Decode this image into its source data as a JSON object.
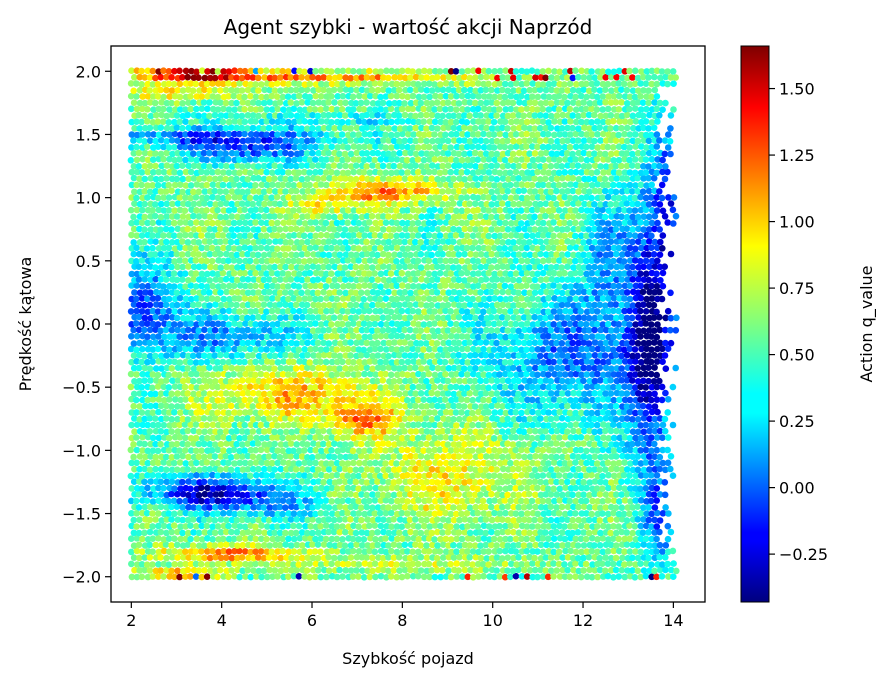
{
  "chart_data": {
    "type": "scatter",
    "title": "Agent szybki - wartość akcji Naprzód",
    "xlabel": "Szybkość pojazd",
    "ylabel": "Prędkość kątowa",
    "xlim": [
      1.55,
      14.7
    ],
    "ylim": [
      -2.2,
      2.2
    ],
    "xticks": [
      2,
      4,
      6,
      8,
      10,
      12,
      14
    ],
    "xtick_labels": [
      "2",
      "4",
      "6",
      "8",
      "10",
      "12",
      "14"
    ],
    "yticks": [
      -2.0,
      -1.5,
      -1.0,
      -0.5,
      0.0,
      0.5,
      1.0,
      1.5,
      2.0
    ],
    "ytick_labels": [
      "−2.0",
      "−1.5",
      "−1.0",
      "−0.5",
      "0.0",
      "0.5",
      "1.0",
      "1.5",
      "2.0"
    ],
    "grid": false,
    "colorbar": {
      "label": "Action q_value",
      "colormap": "jet",
      "vmin": -0.43,
      "vmax": 1.66,
      "ticks": [
        -0.25,
        0.0,
        0.25,
        0.5,
        0.75,
        1.0,
        1.25,
        1.5
      ],
      "tick_labels": [
        "−0.25",
        "0.00",
        "0.25",
        "0.50",
        "0.75",
        "1.00",
        "1.25",
        "1.50"
      ]
    },
    "points_grid": {
      "x_range": [
        2.0,
        14.1
      ],
      "y_range": [
        -2.0,
        2.0
      ],
      "x_step": 0.12,
      "y_step": 0.05
    },
    "value_field": [
      {
        "x": 3.5,
        "y": 1.97,
        "value": 1.6
      },
      {
        "x": 3.5,
        "y": 1.45,
        "value": 0.0
      },
      {
        "x": 4.5,
        "y": 1.35,
        "value": -0.15
      },
      {
        "x": 7.5,
        "y": 1.05,
        "value": 1.3
      },
      {
        "x": 2.5,
        "y": 0.1,
        "value": -0.1
      },
      {
        "x": 7.0,
        "y": -0.7,
        "value": 1.2
      },
      {
        "x": 3.8,
        "y": -1.33,
        "value": -0.3
      },
      {
        "x": 4.5,
        "y": -1.83,
        "value": 1.3
      },
      {
        "x": 12.5,
        "y": -0.2,
        "value": -0.1
      },
      {
        "x": 13.8,
        "y": 0.8,
        "value": -0.35
      }
    ]
  }
}
